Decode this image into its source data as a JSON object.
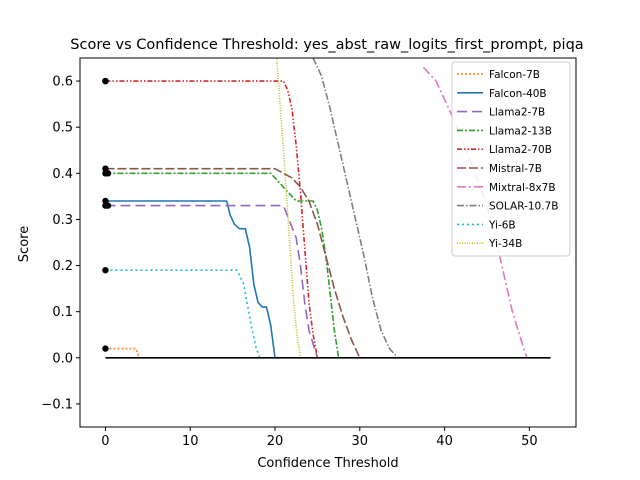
{
  "chart_data": {
    "type": "line",
    "title": "Score vs Confidence Threshold: yes_abst_raw_logits_first_prompt, piqa",
    "xlabel": "Confidence Threshold",
    "ylabel": "Score",
    "xlim": [
      -3,
      55.5
    ],
    "ylim": [
      -0.15,
      0.65
    ],
    "xticks": [
      0,
      10,
      20,
      30,
      40,
      50
    ],
    "yticks": [
      -0.1,
      0.0,
      0.1,
      0.2,
      0.3,
      0.4,
      0.5,
      0.6
    ],
    "ytick_labels": [
      "−0.1",
      "0.0",
      "0.1",
      "0.2",
      "0.3",
      "0.4",
      "0.5",
      "0.6"
    ],
    "grid": false,
    "legend_position": "top-right",
    "series": [
      {
        "name": "Falcon-7B",
        "color": "#ff7f0e",
        "dash": "2,2",
        "x": [
          0,
          0.5,
          1,
          2,
          3,
          3.6,
          4.0
        ],
        "y": [
          0.02,
          0.02,
          0.02,
          0.02,
          0.02,
          0.02,
          0.0
        ]
      },
      {
        "name": "Falcon-40B",
        "color": "#1f77b4",
        "dash": "",
        "x": [
          0,
          2,
          5,
          10,
          14.3,
          14.7,
          15.2,
          15.8,
          16.5,
          17.0,
          17.5,
          18.0,
          18.5,
          19.0,
          19.5,
          20.0
        ],
        "y": [
          0.34,
          0.34,
          0.34,
          0.34,
          0.34,
          0.31,
          0.29,
          0.28,
          0.28,
          0.24,
          0.16,
          0.12,
          0.11,
          0.11,
          0.07,
          0.0
        ]
      },
      {
        "name": "Llama2-7B",
        "color": "#9467bd",
        "dash": "10,5",
        "x": [
          0,
          5,
          10,
          15,
          19,
          21,
          22.5,
          23.0,
          23.5,
          24.0,
          24.5,
          25.0
        ],
        "y": [
          0.33,
          0.33,
          0.33,
          0.33,
          0.33,
          0.33,
          0.26,
          0.2,
          0.12,
          0.06,
          0.03,
          0.0
        ]
      },
      {
        "name": "Llama2-13B",
        "color": "#2ca02c",
        "dash": "6,2,2,2",
        "x": [
          0,
          5,
          10,
          15,
          19.5,
          20.5,
          21.5,
          22.5,
          23.5,
          24.5,
          25.0,
          25.5,
          26.0,
          26.5,
          27.0,
          27.5
        ],
        "y": [
          0.4,
          0.4,
          0.4,
          0.4,
          0.4,
          0.38,
          0.36,
          0.34,
          0.34,
          0.34,
          0.32,
          0.28,
          0.22,
          0.14,
          0.06,
          0.0
        ]
      },
      {
        "name": "Llama2-70B",
        "color": "#d62728",
        "dash": "5,2,1.5,2,1.5,2",
        "x": [
          0,
          5,
          10,
          15,
          20,
          21,
          21.5,
          22.0,
          22.5,
          23.0,
          23.5,
          24.0,
          24.5,
          25.0
        ],
        "y": [
          0.6,
          0.6,
          0.6,
          0.6,
          0.6,
          0.6,
          0.58,
          0.54,
          0.46,
          0.36,
          0.24,
          0.12,
          0.05,
          0.0
        ]
      },
      {
        "name": "Mistral-7B",
        "color": "#8c564b",
        "dash": "9,3",
        "x": [
          0,
          5,
          10,
          15,
          20,
          21,
          22,
          23,
          24,
          25,
          26,
          27,
          28,
          29,
          30
        ],
        "y": [
          0.41,
          0.41,
          0.41,
          0.41,
          0.41,
          0.4,
          0.39,
          0.37,
          0.34,
          0.29,
          0.22,
          0.15,
          0.09,
          0.04,
          0.0
        ]
      },
      {
        "name": "Mixtral-8x7B",
        "color": "#e377c2",
        "dash": "9,3,2,3",
        "x": [
          37.5,
          39,
          41,
          43,
          45,
          46,
          47,
          48,
          49,
          49.7
        ],
        "y": [
          0.63,
          0.6,
          0.52,
          0.43,
          0.33,
          0.26,
          0.18,
          0.1,
          0.04,
          0.0
        ]
      },
      {
        "name": "SOLAR-10.7B",
        "color": "#7f7f7f",
        "dash": "7,2,1.5,2",
        "x": [
          24.5,
          25.5,
          26.5,
          27.5,
          28.5,
          29.5,
          30.5,
          31.5,
          32.5,
          33.5,
          34.5
        ],
        "y": [
          0.65,
          0.61,
          0.54,
          0.46,
          0.38,
          0.3,
          0.22,
          0.13,
          0.06,
          0.02,
          0.0
        ]
      },
      {
        "name": "Yi-6B",
        "color": "#17becf",
        "dash": "2,3",
        "x": [
          0,
          3,
          6,
          9,
          12,
          15.5,
          16.3,
          16.8,
          17.3,
          17.8,
          18.2
        ],
        "y": [
          0.19,
          0.19,
          0.19,
          0.19,
          0.19,
          0.19,
          0.16,
          0.11,
          0.06,
          0.02,
          0.0
        ]
      },
      {
        "name": "Yi-34B",
        "color": "#bcbd22",
        "dash": "1,1.5",
        "x": [
          20.2,
          20.6,
          21.0,
          21.4,
          21.8,
          22.2,
          22.6,
          23.0
        ],
        "y": [
          0.65,
          0.55,
          0.45,
          0.34,
          0.23,
          0.12,
          0.05,
          0.0
        ]
      }
    ],
    "baseline": {
      "x": [
        0,
        52.5
      ],
      "y": [
        0,
        0
      ],
      "color": "#000000"
    },
    "start_points": {
      "x": [
        0,
        0,
        0,
        0,
        0,
        0,
        0,
        0,
        0.3,
        0.3
      ],
      "y": [
        0.6,
        0.41,
        0.34,
        0.33,
        0.19,
        0.02,
        0.6,
        0.4,
        0.4,
        0.33
      ]
    }
  }
}
